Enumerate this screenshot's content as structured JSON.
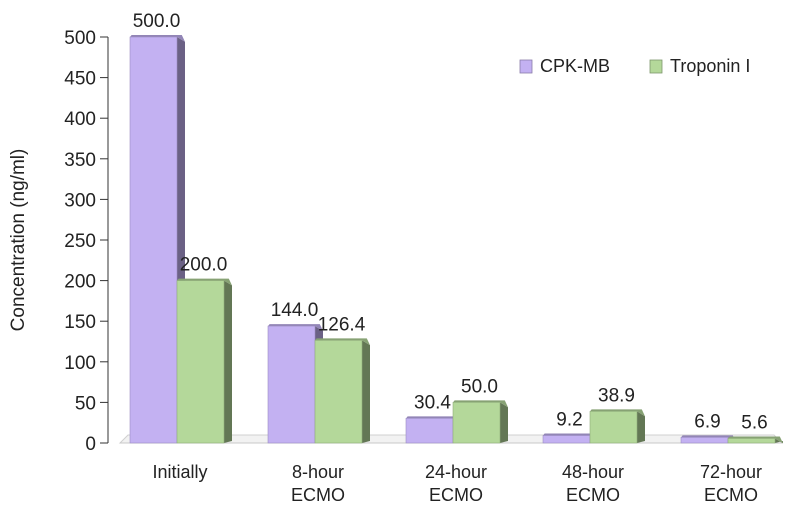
{
  "chart_data": {
    "type": "bar",
    "title": "",
    "xlabel": "",
    "ylabel": "Concentration (ng/ml)",
    "ylim": [
      0,
      500
    ],
    "yticks": [
      0,
      50,
      100,
      150,
      200,
      250,
      300,
      350,
      400,
      450,
      500
    ],
    "grid": false,
    "legend_position": "top-right",
    "categories": [
      [
        "Initially"
      ],
      [
        "8-hour",
        "ECMO"
      ],
      [
        "24-hour",
        "ECMO"
      ],
      [
        "48-hour",
        "ECMO"
      ],
      [
        "72-hour",
        "ECMO"
      ]
    ],
    "series": [
      {
        "name": "CPK-MB",
        "color": "#c3b1f2",
        "values": [
          500.0,
          144.0,
          30.4,
          9.2,
          6.9
        ],
        "labels": [
          "500.0",
          "144.0",
          "30.4",
          "9.2",
          "6.9"
        ]
      },
      {
        "name": "Troponin I",
        "color": "#b4d89a",
        "values": [
          200.0,
          126.4,
          50.0,
          38.9,
          5.6
        ],
        "labels": [
          "200.0",
          "126.4",
          "50.0",
          "38.9",
          "5.6"
        ]
      }
    ]
  }
}
